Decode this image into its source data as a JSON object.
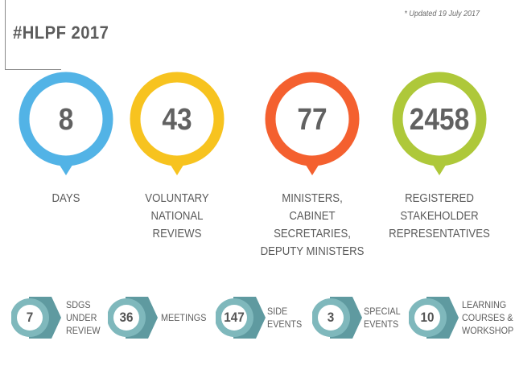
{
  "title": "#HLPF 2017",
  "updated_note": "* Updated 19 July 2017",
  "big_stats": [
    {
      "value": "8",
      "label_lines": [
        "DAYS"
      ],
      "color": "#52b3e6"
    },
    {
      "value": "43",
      "label_lines": [
        "VOLUNTARY",
        "NATIONAL",
        "REVIEWS"
      ],
      "color": "#f7c31f"
    },
    {
      "value": "77",
      "label_lines": [
        "MINISTERS,",
        "CABINET SECRETARIES,",
        "DEPUTY MINISTERS"
      ],
      "color": "#f4602f"
    },
    {
      "value": "2458",
      "label_lines": [
        "REGISTERED",
        "STAKEHOLDER",
        "REPRESENTATIVES"
      ],
      "color": "#aec83a"
    }
  ],
  "small_stats": [
    {
      "value": "7",
      "label_lines": [
        "SDGs",
        "UNDER",
        "REVIEW"
      ]
    },
    {
      "value": "36",
      "label_lines": [
        "MEETINGS"
      ]
    },
    {
      "value": "147",
      "label_lines": [
        "SIDE",
        "EVENTS"
      ]
    },
    {
      "value": "3",
      "label_lines": [
        "SPECIAL",
        "EVENTS"
      ]
    },
    {
      "value": "10",
      "label_lines": [
        "LEARNING",
        "COURSES &",
        "WORKSHOP"
      ]
    }
  ],
  "badge_colors": {
    "ring": "#7fb8bc",
    "shadow": "#5f9aa0",
    "fill": "#ffffff"
  }
}
